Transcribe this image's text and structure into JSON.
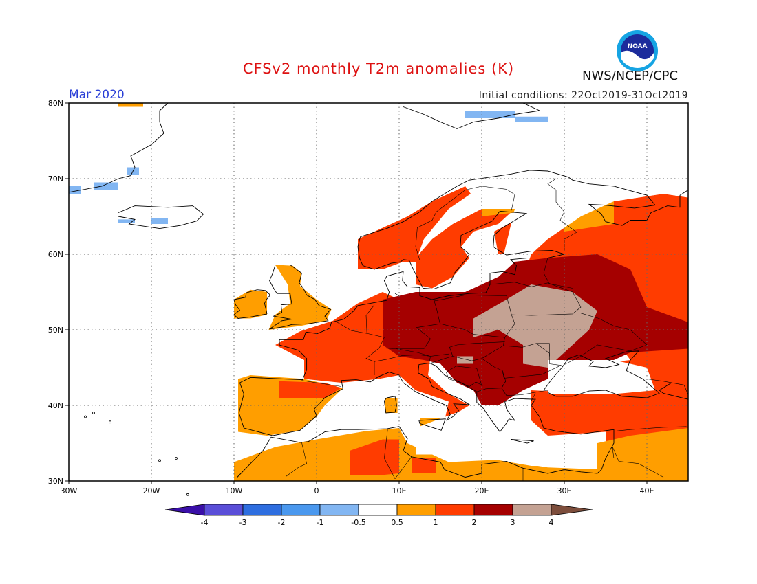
{
  "header": {
    "title": "CFSv2 monthly T2m anomalies (K)",
    "month": "Mar 2020",
    "initial_conditions": "Initial conditions: 22Oct2019-31Oct2019",
    "agency": "NWS/NCEP/CPC",
    "logo_text": "NOAA"
  },
  "map": {
    "lon_range": [
      -30,
      45
    ],
    "lat_range": [
      30,
      80
    ],
    "lon_ticks": [
      "30W",
      "20W",
      "10W",
      "0",
      "10E",
      "20E",
      "30E",
      "40E"
    ],
    "lat_ticks": [
      "30N",
      "40N",
      "50N",
      "60N",
      "70N",
      "80N"
    ],
    "gridlines": true
  },
  "legend": {
    "levels": [
      "-4",
      "-3",
      "-2",
      "-1",
      "-0.5",
      "0.5",
      "1",
      "2",
      "3",
      "4"
    ],
    "colors": [
      "#3a0fa8",
      "#5a4ed8",
      "#2e6ee0",
      "#4a98ee",
      "#82b6f2",
      "#ffffff",
      "#ff9e00",
      "#ff3c00",
      "#a50000",
      "#c4a293",
      "#7d4e3c"
    ]
  }
}
